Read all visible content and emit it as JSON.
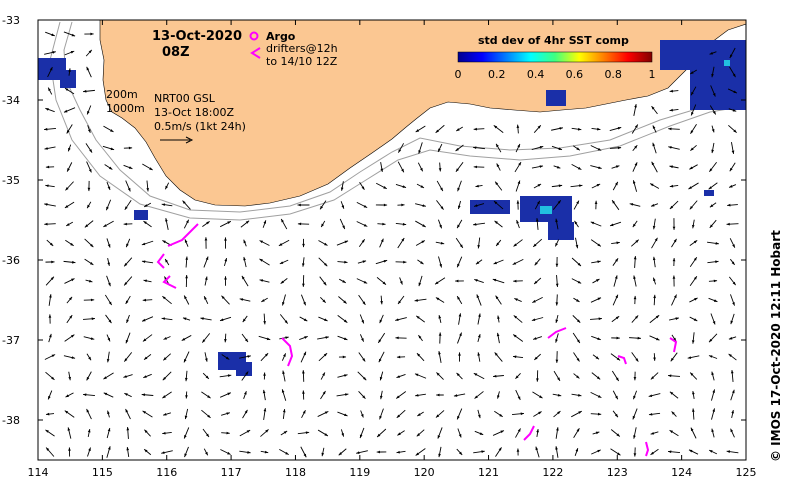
{
  "map": {
    "date": "13-Oct-2020",
    "hour": "08Z",
    "legend_argo": "Argo",
    "legend_drifters_1": "drifters@12h",
    "legend_drifters_2": "to 14/10 12Z",
    "contour_200": "200m",
    "contour_1000": "1000m",
    "product": "NRT00 GSL",
    "product_time": "13-Oct 18:00Z",
    "scale_text": "0.5m/s (1kt 24h)",
    "colorbar_title": "std dev of 4hr SST comp",
    "colorbar_ticks": [
      "0",
      "0.2",
      "0.4",
      "0.6",
      "0.8",
      "1"
    ],
    "credit": "© IMOS 17-Oct-2020 12:11 Hobart",
    "lon_ticks": [
      "114",
      "115",
      "116",
      "117",
      "118",
      "119",
      "120",
      "121",
      "122",
      "123",
      "124",
      "125"
    ],
    "lat_ticks": [
      "-33",
      "-34",
      "-35",
      "-36",
      "-37",
      "-38"
    ],
    "lon_range": [
      114,
      125
    ],
    "lat_range": [
      -38.5,
      -33
    ],
    "colors": {
      "land": "#fbc792",
      "drifter": "#ff00ff",
      "contour": "#a0a0a0",
      "sst_patch": "#1a2fa8"
    }
  }
}
